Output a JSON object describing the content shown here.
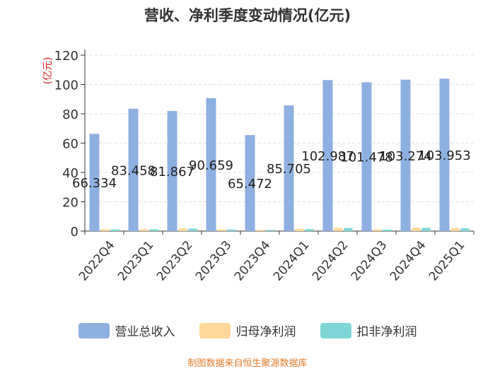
{
  "header": {
    "title": "营收、净利季度变动情况(亿元)"
  },
  "footer": {
    "source": "制图数据来自恒生聚源数据库"
  },
  "colors": {
    "revenue": "#8eb0e0",
    "parent_net_profit": "#fdd89a",
    "deducted_net_profit": "#7fd6d6",
    "ylabel": "#e02020"
  },
  "chart_data": {
    "type": "bar",
    "title": "营收、净利季度变动情况(亿元)",
    "ylabel": "(亿元)",
    "xlabel": "",
    "ylim": [
      0,
      120
    ],
    "yticks": [
      0,
      20,
      40,
      60,
      80,
      100,
      120
    ],
    "grid": true,
    "legend_position": "bottom",
    "categories": [
      "2022Q4",
      "2023Q1",
      "2023Q2",
      "2023Q3",
      "2023Q4",
      "2024Q1",
      "2024Q2",
      "2024Q3",
      "2024Q4",
      "2025Q1"
    ],
    "series": [
      {
        "name": "营业总收入",
        "values": [
          66.334,
          83.458,
          81.867,
          90.659,
          65.472,
          85.705,
          102.987,
          101.478,
          103.274,
          103.953
        ],
        "labels": [
          "66.334",
          "83.458",
          "81.867",
          "90.659",
          "65.472",
          "85.705",
          "102.987",
          "101.478",
          "103.274",
          "103.953"
        ]
      },
      {
        "name": "归母净利润",
        "values": [
          1.2,
          1.3,
          1.8,
          1.2,
          0.9,
          1.5,
          2.2,
          1.1,
          2.3,
          2.0
        ]
      },
      {
        "name": "扣非净利润",
        "values": [
          1.1,
          1.2,
          1.7,
          1.1,
          0.8,
          1.4,
          2.1,
          1.0,
          2.2,
          1.9
        ]
      }
    ]
  }
}
